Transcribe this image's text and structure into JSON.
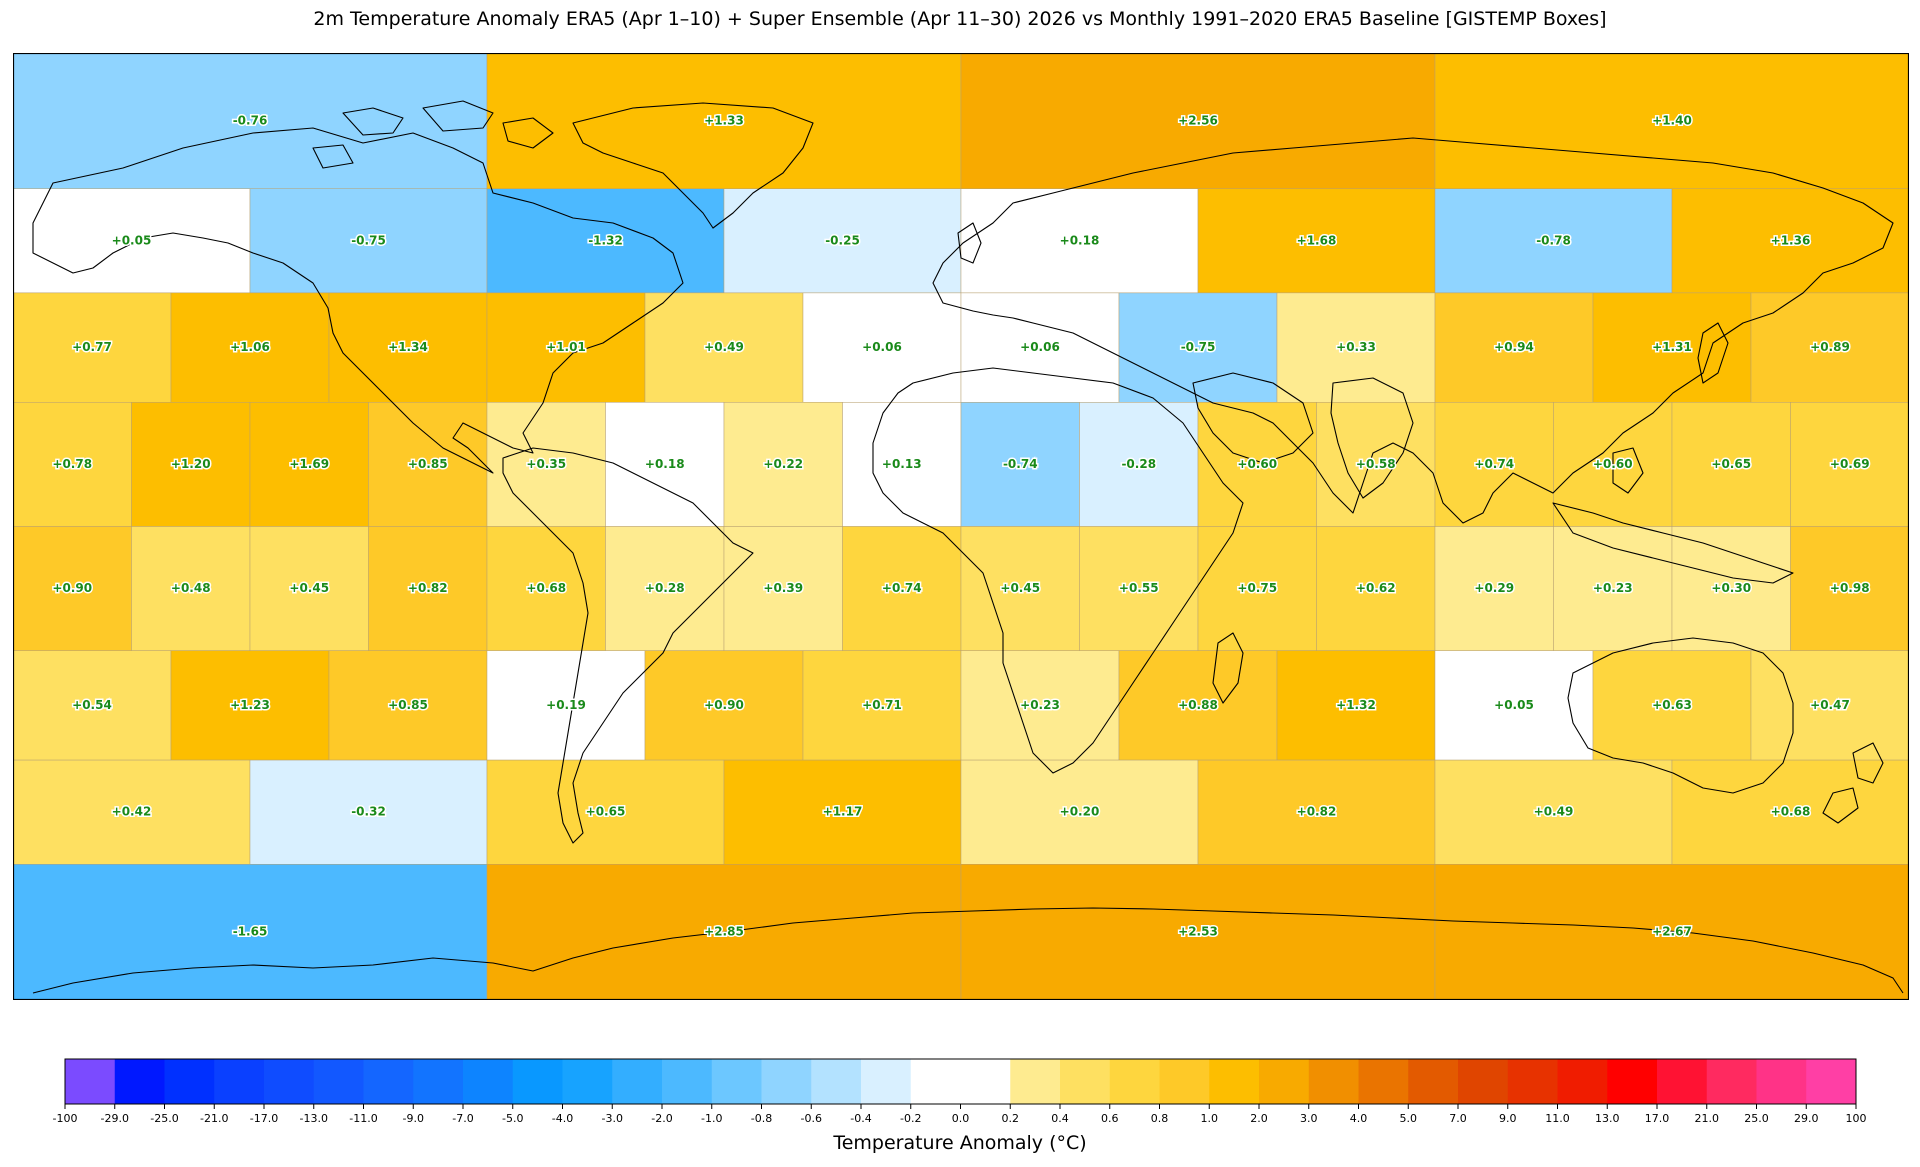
{
  "title": "2m Temperature Anomaly  ERA5 (Apr 1–10) + Super Ensemble (Apr 11–30) 2026  vs Monthly 1991–2020 ERA5 Baseline  [GISTEMP Boxes]",
  "colorbar": {
    "label": "Temperature Anomaly (°C)",
    "ticks": [
      "-100",
      "-29.0",
      "-25.0",
      "-21.0",
      "-17.0",
      "-13.0",
      "-11.0",
      "-9.0",
      "-7.0",
      "-5.0",
      "-4.0",
      "-3.0",
      "-2.0",
      "-1.0",
      "-0.8",
      "-0.6",
      "-0.4",
      "-0.2",
      "0.0",
      "0.2",
      "0.4",
      "0.6",
      "0.8",
      "1.0",
      "2.0",
      "3.0",
      "4.0",
      "5.0",
      "7.0",
      "9.0",
      "11.0",
      "13.0",
      "17.0",
      "21.0",
      "25.0",
      "29.0",
      "100"
    ],
    "colors": [
      "#7b4bff",
      "#0018ff",
      "#0030ff",
      "#0a40ff",
      "#0f4cff",
      "#1258ff",
      "#1466ff",
      "#1274ff",
      "#0d84ff",
      "#0998ff",
      "#17a3ff",
      "#33aeff",
      "#4cb9ff",
      "#6cc7ff",
      "#8fd4ff",
      "#b3e2ff",
      "#d9f0ff",
      "#ffffff",
      "#ffffff",
      "#feeb90",
      "#fee061",
      "#fed63e",
      "#fec928",
      "#fdbe00",
      "#f8aa00",
      "#f18f00",
      "#ea7400",
      "#e35a00",
      "#e04500",
      "#e73200",
      "#f01c00",
      "#ff0000",
      "#ff1233",
      "#ff2a60",
      "#ff3387",
      "#ff3fa5"
    ]
  },
  "chart_data": {
    "type": "heatmap",
    "title": "2m Temperature Anomaly  ERA5 (Apr 1–10) + Super Ensemble (Apr 11–30) 2026  vs Monthly 1991–2020 ERA5 Baseline  [GISTEMP Boxes]",
    "colorbar_label": "Temperature Anomaly (°C)",
    "bands": [
      {
        "lat_range": [
          64.2,
          90
        ],
        "lon_edges": [
          -180,
          -90,
          0,
          90,
          180
        ],
        "values": [
          -0.76,
          1.33,
          2.56,
          1.4
        ]
      },
      {
        "lat_range": [
          44.4,
          64.2
        ],
        "lon_edges": [
          -180,
          -135,
          -90,
          -45,
          0,
          45,
          90,
          135,
          180
        ],
        "values": [
          0.05,
          -0.75,
          -1.32,
          -0.25,
          0.18,
          1.68,
          -0.78,
          1.36
        ]
      },
      {
        "lat_range": [
          23.6,
          44.4
        ],
        "lon_edges": [
          -180,
          -150,
          -120,
          -90,
          -60,
          -30,
          0,
          30,
          60,
          90,
          120,
          150,
          180
        ],
        "values": [
          0.77,
          1.06,
          1.34,
          1.01,
          0.49,
          0.06,
          0.06,
          -0.75,
          0.33,
          0.94,
          1.31,
          0.89
        ]
      },
      {
        "lat_range": [
          0,
          23.6
        ],
        "lon_edges": [
          -180,
          -157.5,
          -135,
          -112.5,
          -90,
          -67.5,
          -45,
          -22.5,
          0,
          22.5,
          45,
          67.5,
          90,
          112.5,
          135,
          157.5,
          180
        ],
        "values": [
          0.78,
          1.2,
          1.69,
          0.85,
          0.35,
          0.18,
          0.22,
          0.13,
          -0.74,
          -0.28,
          0.6,
          0.58,
          0.74,
          0.6,
          0.65,
          0.69
        ]
      },
      {
        "lat_range": [
          -23.6,
          0
        ],
        "lon_edges": [
          -180,
          -157.5,
          -135,
          -112.5,
          -90,
          -67.5,
          -45,
          -22.5,
          0,
          22.5,
          45,
          67.5,
          90,
          112.5,
          135,
          157.5,
          180
        ],
        "values": [
          0.9,
          0.48,
          0.45,
          0.82,
          0.68,
          0.28,
          0.39,
          0.74,
          0.45,
          0.55,
          0.75,
          0.62,
          0.29,
          0.23,
          0.3,
          0.98
        ]
      },
      {
        "lat_range": [
          -44.4,
          -23.6
        ],
        "lon_edges": [
          -180,
          -150,
          -120,
          -90,
          -60,
          -30,
          0,
          30,
          60,
          90,
          120,
          150,
          180
        ],
        "values": [
          0.54,
          1.23,
          0.85,
          0.19,
          0.9,
          0.71,
          0.23,
          0.88,
          1.32,
          0.05,
          0.63,
          0.47
        ]
      },
      {
        "lat_range": [
          -64.2,
          -44.4
        ],
        "lon_edges": [
          -180,
          -135,
          -90,
          -45,
          0,
          45,
          90,
          135,
          180
        ],
        "values": [
          0.42,
          -0.32,
          0.65,
          1.17,
          0.2,
          0.82,
          0.49,
          0.68
        ]
      },
      {
        "lat_range": [
          -90,
          -64.2
        ],
        "lon_edges": [
          -180,
          -90,
          0,
          90,
          180
        ],
        "values": [
          -1.65,
          2.85,
          2.53,
          2.67
        ]
      }
    ]
  }
}
